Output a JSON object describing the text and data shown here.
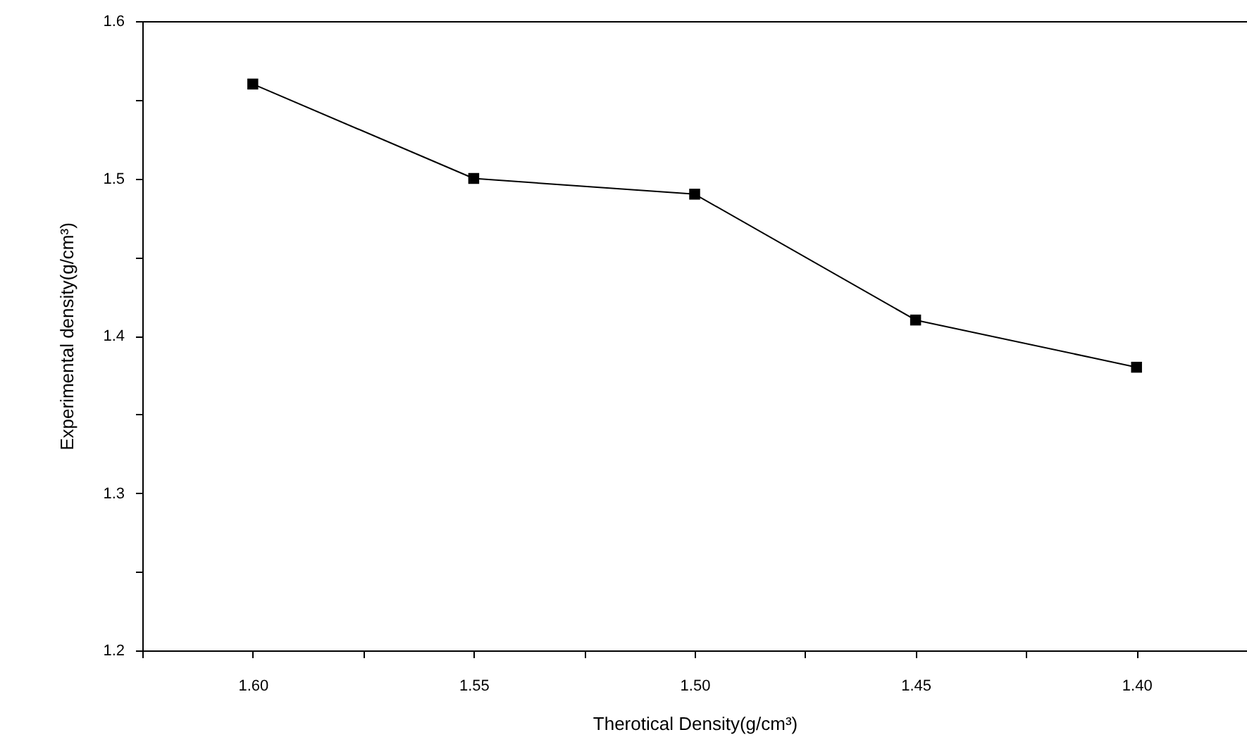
{
  "chart_data": {
    "type": "line",
    "xlabel": "Therotical Density(g/cm³)",
    "ylabel": "Experimental density(g/cm³)",
    "x": [
      1.6,
      1.55,
      1.5,
      1.45,
      1.4
    ],
    "series": [
      {
        "color": "#000000",
        "values": [
          1.56,
          1.5,
          1.49,
          1.41,
          1.38
        ]
      }
    ],
    "xlim": [
      1.625,
      1.375
    ],
    "xticks": [
      {
        "value": 1.625,
        "label": null
      },
      {
        "value": 1.6,
        "label": "1.60"
      },
      {
        "value": 1.575,
        "label": null
      },
      {
        "value": 1.55,
        "label": "1.55"
      },
      {
        "value": 1.525,
        "label": null
      },
      {
        "value": 1.5,
        "label": "1.50"
      },
      {
        "value": 1.475,
        "label": null
      },
      {
        "value": 1.45,
        "label": "1.45"
      },
      {
        "value": 1.425,
        "label": null
      },
      {
        "value": 1.4,
        "label": "1.40"
      }
    ],
    "ylim": [
      1.2,
      1.6
    ],
    "yticks": [
      1.2,
      {
        "value": 1.25,
        "label": null
      },
      1.3,
      {
        "value": 1.35,
        "label": null
      },
      1.4,
      {
        "value": 1.45,
        "label": null
      },
      1.5,
      {
        "value": 1.55,
        "label": null
      },
      1.6
    ],
    "grid": false,
    "marker": "square",
    "line_style": "solid"
  }
}
